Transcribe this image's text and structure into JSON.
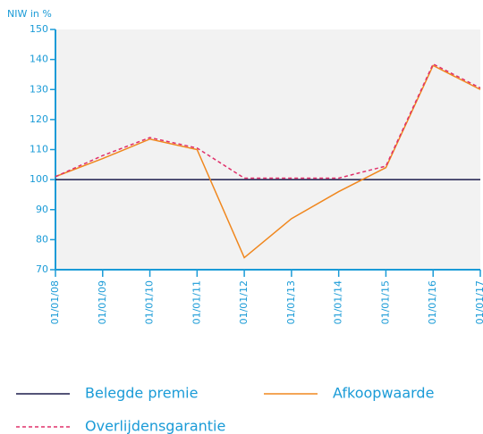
{
  "chart_data": {
    "type": "line",
    "y_label": "NIW in %",
    "categories": [
      "01/01/08",
      "01/01/09",
      "01/01/10",
      "01/01/11",
      "01/01/12",
      "01/01/13",
      "01/01/14",
      "01/01/15",
      "01/01/16",
      "01/01/17"
    ],
    "series": [
      {
        "name": "Belegde premie",
        "color": "#1b1b4b",
        "dash": false,
        "values": [
          100,
          100,
          100,
          100,
          100,
          100,
          100,
          100,
          100,
          100
        ]
      },
      {
        "name": "Afkoopwaarde",
        "color": "#f0871e",
        "dash": false,
        "values": [
          101,
          107,
          113.5,
          110,
          74,
          87,
          96,
          104,
          138,
          130
        ]
      },
      {
        "name": "Overlijdensgarantie",
        "color": "#e0306a",
        "dash": true,
        "values": [
          101,
          108,
          114,
          110.5,
          100.5,
          100.5,
          100.5,
          104.5,
          138.5,
          130.5
        ]
      }
    ],
    "ylim": [
      70,
      150
    ],
    "yticks": [
      70,
      80,
      90,
      100,
      110,
      120,
      130,
      140,
      150
    ]
  }
}
